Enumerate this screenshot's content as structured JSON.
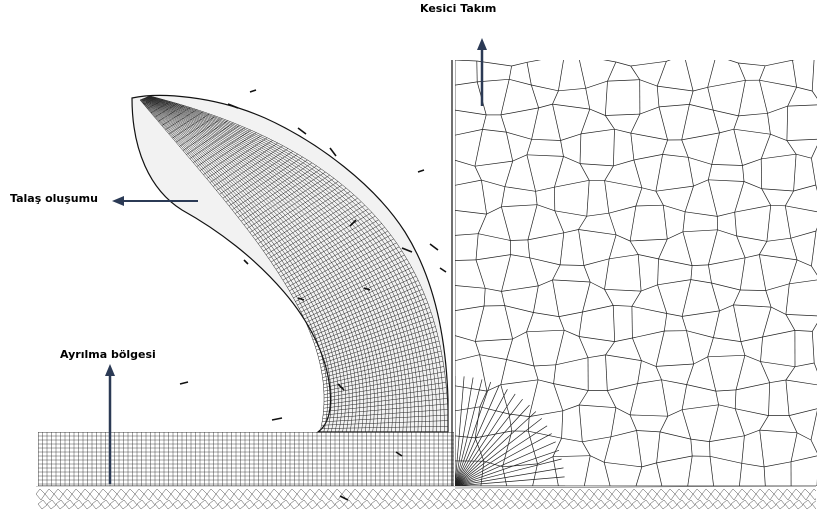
{
  "labels": {
    "cutting_tool": "Kesici Takım",
    "chip_formation": "Talaş oluşumu",
    "separation_zone": "Ayrılma bölgesi"
  },
  "colors": {
    "mesh": "#222222",
    "arrow": "#2b3a55",
    "background": "#ffffff"
  }
}
